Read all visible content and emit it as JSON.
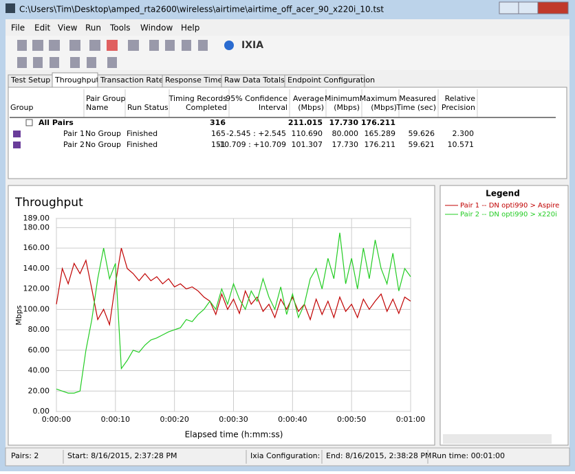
{
  "window": {
    "title": "C:\\Users\\Tim\\Desktop\\amped_rta2600\\wireless\\airtime\\airtime_off_acer_90_x220i_10.tst"
  },
  "menu": [
    "File",
    "Edit",
    "View",
    "Run",
    "Tools",
    "Window",
    "Help"
  ],
  "toolbar": {
    "logo": "IXIA"
  },
  "tabs": {
    "items": [
      "Test Setup",
      "Throughput",
      "Transaction Rate",
      "Response Time",
      "Raw Data Totals",
      "Endpoint Configuration"
    ],
    "active": 1
  },
  "table": {
    "headers": [
      [
        "Group"
      ],
      [
        "Pair Group",
        "Name"
      ],
      [
        "Run Status"
      ],
      [
        "Timing Records",
        "Completed"
      ],
      [
        "95% Confidence",
        "Interval"
      ],
      [
        "Average",
        "(Mbps)"
      ],
      [
        "Minimum",
        "(Mbps)"
      ],
      [
        "Maximum",
        "(Mbps)"
      ],
      [
        "Measured",
        "Time (sec)"
      ],
      [
        "Relative",
        "Precision"
      ]
    ],
    "rows": [
      [
        "All Pairs",
        null,
        null,
        "316",
        null,
        "211.015",
        "17.730",
        "176.211",
        null,
        null
      ],
      [
        "Pair 1",
        "No Group",
        "Finished",
        "165",
        "-2.545 : +2.545",
        "110.690",
        "80.000",
        "165.289",
        "59.626",
        "2.300"
      ],
      [
        "Pair 2",
        "No Group",
        "Finished",
        "151",
        "-10.709 : +10.709",
        "101.307",
        "17.730",
        "176.211",
        "59.621",
        "10.571"
      ]
    ]
  },
  "chart_data": {
    "type": "line",
    "title": "Throughput",
    "xlabel": "Elapsed time (h:mm:ss)",
    "ylabel": "Mbps",
    "x": [
      0,
      1,
      2,
      3,
      4,
      5,
      6,
      7,
      8,
      9,
      10,
      11,
      12,
      13,
      14,
      15,
      16,
      17,
      18,
      19,
      20,
      21,
      22,
      23,
      24,
      25,
      26,
      27,
      28,
      29,
      30,
      31,
      32,
      33,
      34,
      35,
      36,
      37,
      38,
      39,
      40,
      41,
      42,
      43,
      44,
      45,
      46,
      47,
      48,
      49,
      50,
      51,
      52,
      53,
      54,
      55,
      56,
      57,
      58,
      59,
      60
    ],
    "xlim": [
      0,
      60
    ],
    "ylim": [
      0,
      189
    ],
    "xticks": [
      {
        "value": 0,
        "label": "0:00:00"
      },
      {
        "value": 10,
        "label": "0:00:10"
      },
      {
        "value": 20,
        "label": "0:00:20"
      },
      {
        "value": 30,
        "label": "0:00:30"
      },
      {
        "value": 40,
        "label": "0:00:40"
      },
      {
        "value": 50,
        "label": "0:00:50"
      },
      {
        "value": 60,
        "label": "0:01:00"
      }
    ],
    "yticks": [
      {
        "value": 0,
        "label": "0.00"
      },
      {
        "value": 20,
        "label": "20.00"
      },
      {
        "value": 40,
        "label": "40.00"
      },
      {
        "value": 60,
        "label": "60.00"
      },
      {
        "value": 80,
        "label": "80.00"
      },
      {
        "value": 100,
        "label": "100.00"
      },
      {
        "value": 120,
        "label": "120.00"
      },
      {
        "value": 140,
        "label": "140.00"
      },
      {
        "value": 160,
        "label": "160.00"
      },
      {
        "value": 180,
        "label": "180.00"
      },
      {
        "value": 189,
        "label": "189.00"
      }
    ],
    "grid": true,
    "series": [
      {
        "name": "Pair 1 -- DN opti990 > Aspire",
        "color": "#c00000",
        "values": [
          105,
          140,
          125,
          145,
          135,
          148,
          120,
          90,
          100,
          85,
          125,
          160,
          140,
          135,
          128,
          135,
          128,
          132,
          125,
          130,
          122,
          125,
          120,
          122,
          118,
          112,
          108,
          95,
          115,
          100,
          110,
          96,
          118,
          105,
          112,
          98,
          105,
          92,
          110,
          100,
          112,
          98,
          105,
          90,
          110,
          95,
          108,
          92,
          112,
          98,
          105,
          92,
          110,
          100,
          108,
          115,
          98,
          110,
          96,
          112,
          108
        ]
      },
      {
        "name": "Pair 2 -- DN opti990 > x220i",
        "color": "#22cc22",
        "values": [
          22,
          20,
          18,
          18,
          20,
          60,
          90,
          130,
          160,
          130,
          145,
          42,
          50,
          60,
          58,
          65,
          70,
          72,
          75,
          78,
          80,
          82,
          90,
          88,
          95,
          100,
          108,
          100,
          120,
          105,
          125,
          110,
          100,
          118,
          108,
          130,
          112,
          100,
          122,
          95,
          115,
          92,
          105,
          130,
          140,
          120,
          150,
          130,
          175,
          125,
          150,
          120,
          160,
          130,
          168,
          140,
          125,
          155,
          118,
          140,
          132
        ]
      }
    ]
  },
  "legend": {
    "title": "Legend"
  },
  "status": [
    "Pairs: 2",
    "Start: 8/16/2015, 2:37:28 PM",
    "Ixia Configuration:",
    "End: 8/16/2015, 2:38:28 PM",
    "Run time: 00:01:00"
  ]
}
